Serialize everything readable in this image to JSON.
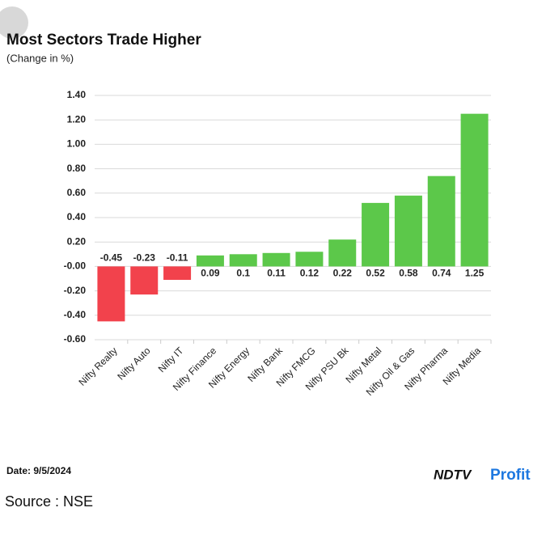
{
  "chart_data": {
    "type": "bar",
    "title": "Most Sectors Trade Higher",
    "subtitle": "(Change in %)",
    "categories": [
      "Nifty Realty",
      "Nifty Auto",
      "Nifty IT",
      "Nifty Finance",
      "Nifty Energy",
      "Nifty Bank",
      "Nifty FMCG",
      "Nifty PSU Bk",
      "Nifty Metal",
      "Nifty Oil & Gas",
      "Nifty Pharma",
      "Nifty Media"
    ],
    "values": [
      -0.45,
      -0.23,
      -0.11,
      0.09,
      0.1,
      0.11,
      0.12,
      0.22,
      0.52,
      0.58,
      0.74,
      1.25
    ],
    "positive_color": "#5cc84a",
    "negative_color": "#f2424c",
    "ylim": [
      -0.6,
      1.4
    ],
    "yticks": [
      {
        "value": -0.6,
        "label": "-0.60"
      },
      {
        "value": -0.4,
        "label": "-0.40"
      },
      {
        "value": -0.2,
        "label": "-0.20"
      },
      {
        "value": 0,
        "label": "-0.00"
      },
      {
        "value": 0.2,
        "label": "0.20"
      },
      {
        "value": 0.4,
        "label": "0.40"
      },
      {
        "value": 0.6,
        "label": "0.60"
      },
      {
        "value": 0.8,
        "label": "0.80"
      },
      {
        "value": 1.0,
        "label": "1.00"
      },
      {
        "value": 1.2,
        "label": "1.20"
      },
      {
        "value": 1.4,
        "label": "1.40"
      }
    ],
    "grid": true,
    "date": "Date: 9/5/2024",
    "source": "Source : NSE",
    "brand": "NDTV",
    "brand_suffix": "Profit"
  }
}
